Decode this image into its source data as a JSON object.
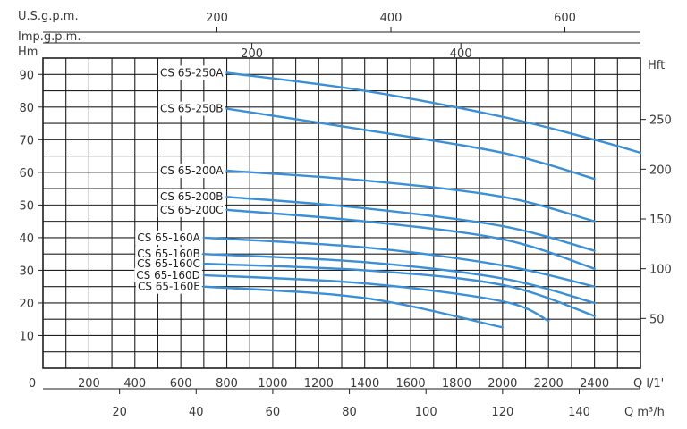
{
  "chart_data": {
    "type": "line",
    "title": "",
    "y_left": {
      "label": "Hm",
      "ticks": [
        10,
        20,
        30,
        40,
        50,
        60,
        70,
        80,
        90
      ],
      "range": [
        0,
        95
      ]
    },
    "y_right": {
      "label": "Hft",
      "ticks": [
        50,
        100,
        150,
        200,
        250
      ]
    },
    "x_bottom_lpm": {
      "label": "Q l/1'",
      "zero_label": "0",
      "ticks": [
        200,
        400,
        600,
        800,
        1000,
        1200,
        1400,
        1600,
        1800,
        2000,
        2200,
        2400
      ],
      "range": [
        0,
        2600
      ]
    },
    "x_bottom_m3h": {
      "label": "Q m³/h",
      "ticks": [
        20,
        40,
        60,
        80,
        100,
        120,
        140
      ]
    },
    "x_top_usgpm": {
      "label": "U.S.g.p.m.",
      "ticks": [
        200,
        400,
        600
      ]
    },
    "x_top_impgpm": {
      "label": "Imp.g.p.m.",
      "ticks": [
        200,
        400
      ]
    },
    "grid": true,
    "series": [
      {
        "name": "CS 65-250A",
        "x": [
          800,
          1400,
          2000,
          2400,
          2600
        ],
        "y": [
          90.5,
          85,
          77,
          70,
          66
        ]
      },
      {
        "name": "CS 65-250B",
        "x": [
          800,
          1400,
          2000,
          2400
        ],
        "y": [
          79.5,
          73,
          66,
          58
        ]
      },
      {
        "name": "CS 65-200A",
        "x": [
          800,
          1400,
          2000,
          2400
        ],
        "y": [
          60.5,
          57.5,
          52.5,
          45
        ]
      },
      {
        "name": "CS 65-200B",
        "x": [
          800,
          1400,
          2000,
          2400
        ],
        "y": [
          52.5,
          49,
          43.5,
          36
        ]
      },
      {
        "name": "CS 65-200C",
        "x": [
          800,
          1400,
          2000,
          2400
        ],
        "y": [
          48.5,
          45,
          39.5,
          30.5
        ]
      },
      {
        "name": "CS 65-160A",
        "x": [
          700,
          1400,
          2000,
          2400
        ],
        "y": [
          40,
          37,
          31.5,
          25
        ]
      },
      {
        "name": "CS 65-160B",
        "x": [
          700,
          1400,
          2000,
          2400
        ],
        "y": [
          35,
          32.5,
          27.5,
          20
        ]
      },
      {
        "name": "CS 65-160C",
        "x": [
          700,
          1400,
          2000,
          2400
        ],
        "y": [
          32,
          30,
          25.5,
          16
        ]
      },
      {
        "name": "CS 65-160D",
        "x": [
          700,
          1400,
          2000,
          2200
        ],
        "y": [
          28.5,
          26,
          20.5,
          14.5
        ]
      },
      {
        "name": "CS 65-160E",
        "x": [
          700,
          1400,
          2000
        ],
        "y": [
          25,
          21.5,
          12.5
        ]
      }
    ],
    "colors": {
      "curve": "#3a8fd6",
      "grid": "#1f1f1f",
      "text": "#3a3a3a"
    }
  }
}
